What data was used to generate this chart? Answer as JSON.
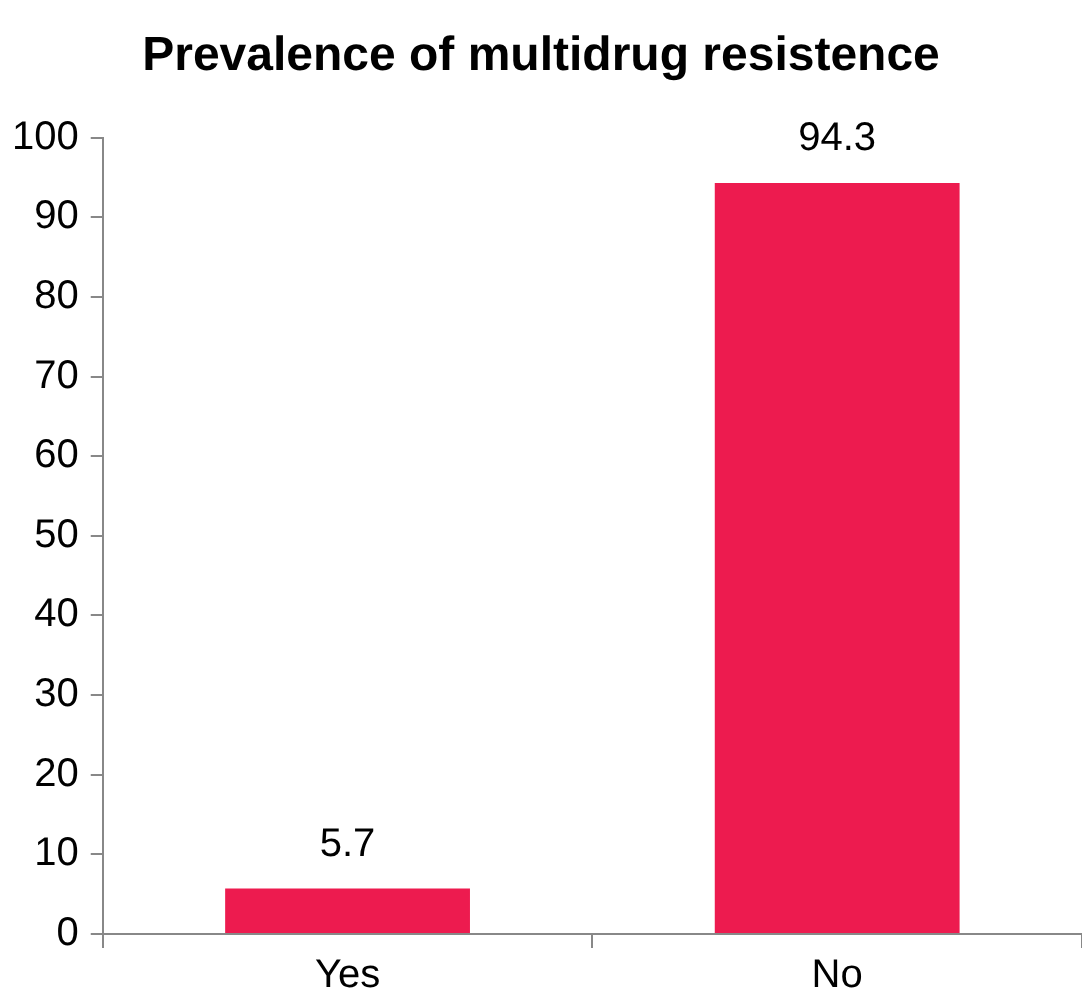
{
  "chart_data": {
    "type": "bar",
    "title": "Prevalence of multidrug resistence",
    "categories": [
      "Yes",
      "No"
    ],
    "values": [
      5.7,
      94.3
    ],
    "color": "#ed1b4f",
    "ylim": [
      0,
      100
    ],
    "yticks": [
      0,
      10,
      20,
      30,
      40,
      50,
      60,
      70,
      80,
      90,
      100
    ],
    "grid": false,
    "legend": false,
    "data_labels": true
  }
}
